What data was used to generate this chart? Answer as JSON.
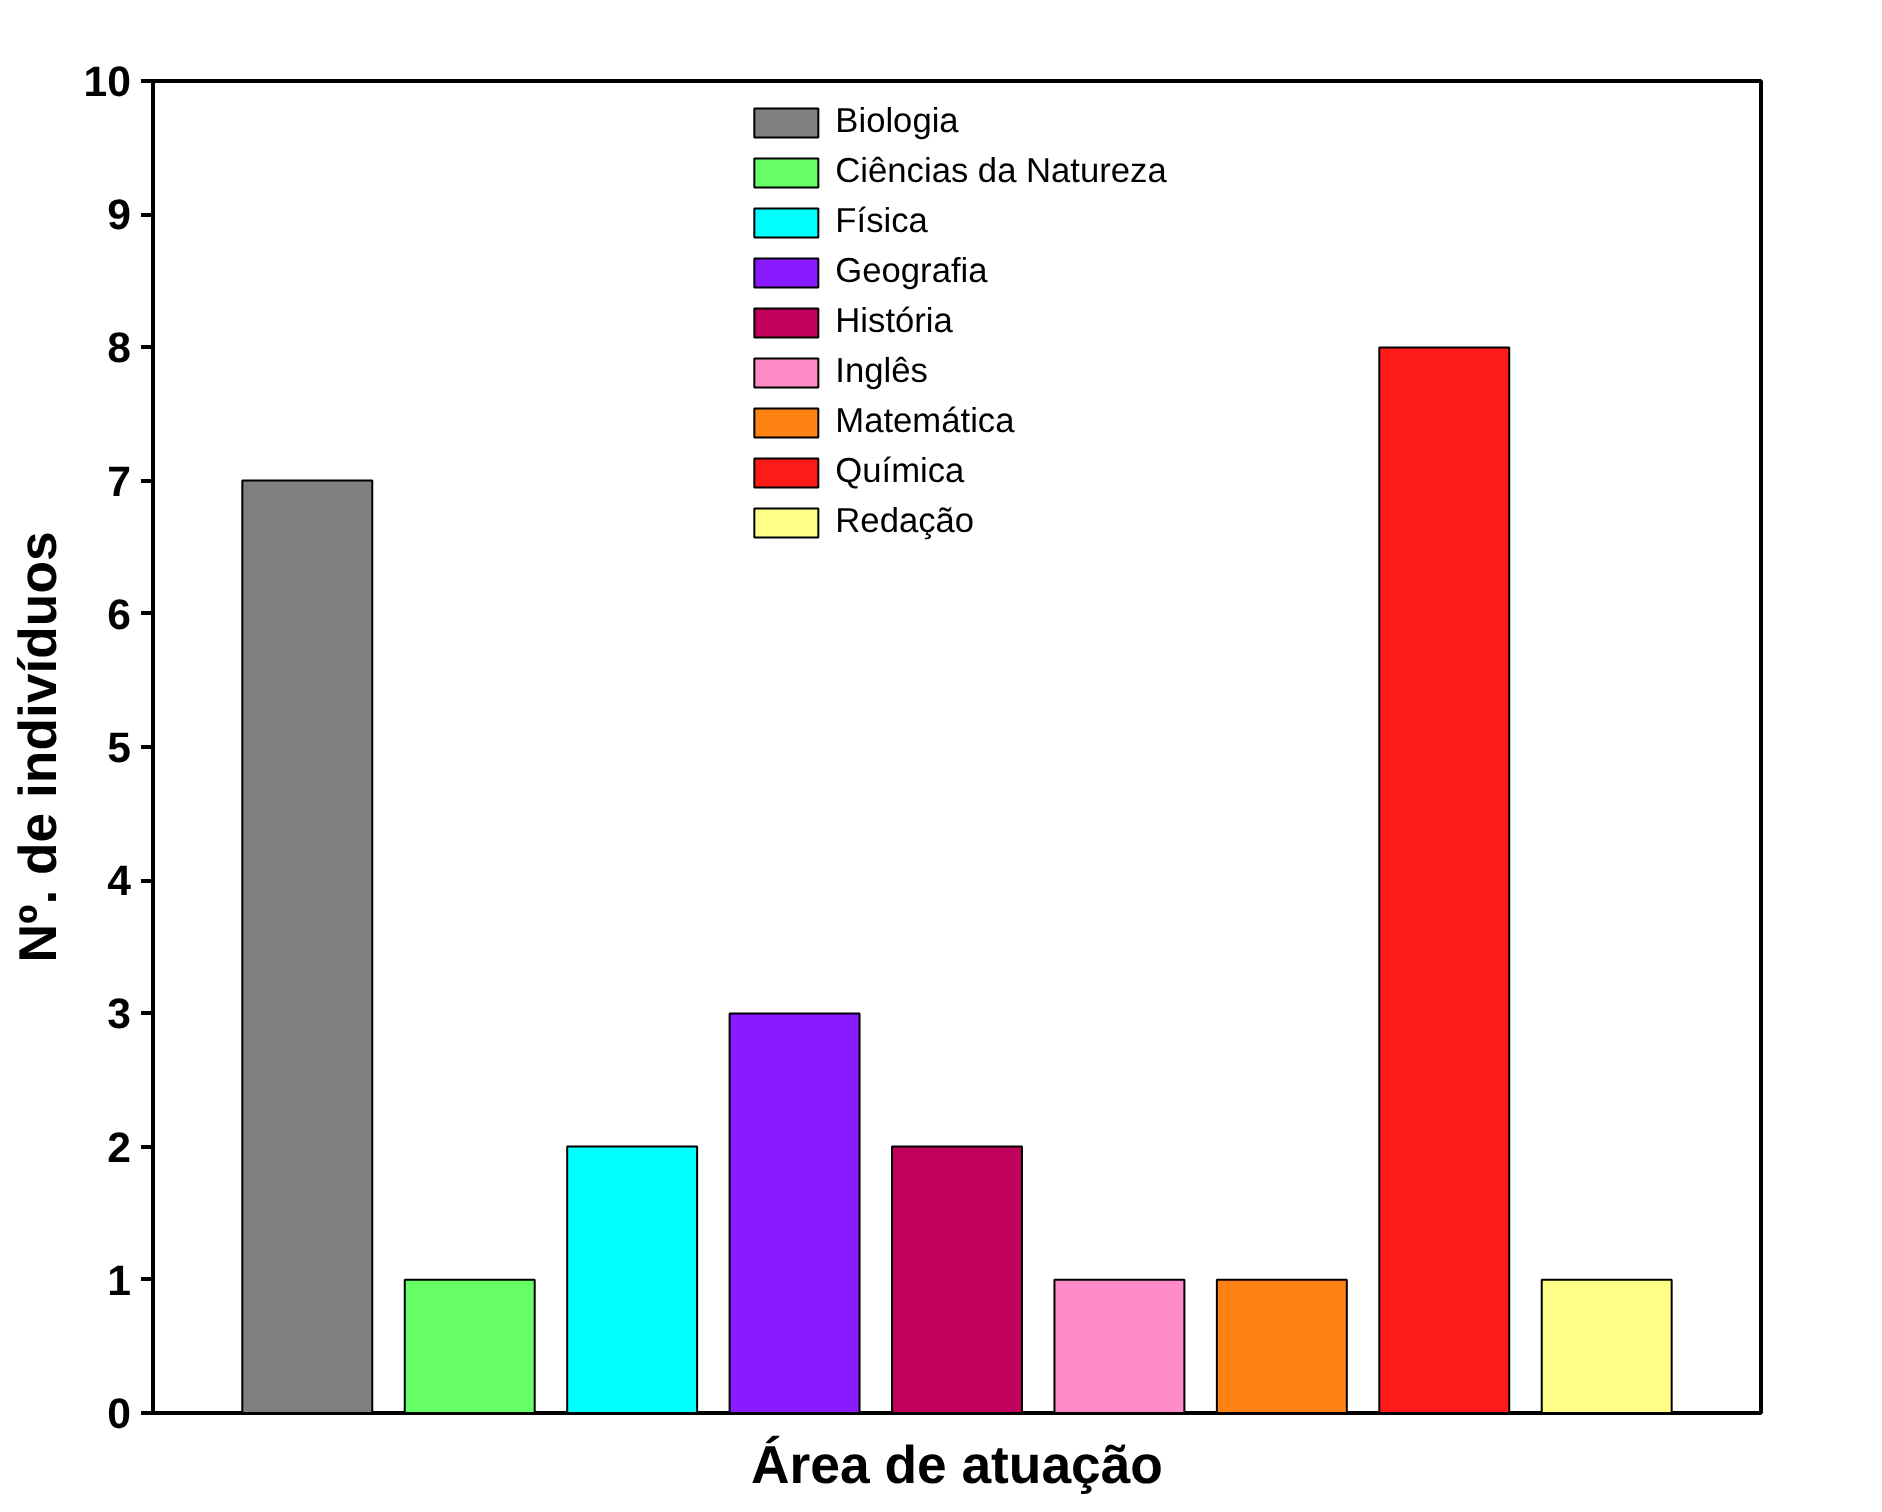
{
  "chart_data": {
    "type": "bar",
    "stacked": true,
    "xlabel": "Área de atuação",
    "ylabel": "Nº. de indivíduos",
    "categories": [
      null,
      null,
      null,
      null,
      null,
      null,
      null,
      null,
      null
    ],
    "series": [
      {
        "name": "Biologia",
        "color": "#7f7f7f",
        "values": [
          7,
          null,
          null,
          null,
          null,
          null,
          null,
          null,
          null
        ]
      },
      {
        "name": "Ciências da Natureza",
        "color": "#66ff66",
        "values": [
          null,
          1,
          null,
          null,
          null,
          null,
          null,
          null,
          null
        ]
      },
      {
        "name": "Física",
        "color": "#00ffff",
        "values": [
          null,
          null,
          2,
          null,
          null,
          null,
          null,
          null,
          null
        ]
      },
      {
        "name": "Geografia",
        "color": "#8a1aff",
        "values": [
          null,
          null,
          null,
          3,
          null,
          null,
          null,
          null,
          null
        ]
      },
      {
        "name": "História",
        "color": "#c0005c",
        "values": [
          null,
          null,
          null,
          null,
          2,
          null,
          null,
          null,
          null
        ]
      },
      {
        "name": "Inglês",
        "color": "#ff8ac8",
        "values": [
          null,
          null,
          null,
          null,
          null,
          1,
          null,
          null,
          null
        ]
      },
      {
        "name": "Matemática",
        "color": "#ff8214",
        "values": [
          null,
          null,
          null,
          null,
          null,
          null,
          1,
          null,
          null
        ]
      },
      {
        "name": "Química",
        "color": "#ff1a1a",
        "values": [
          null,
          null,
          null,
          null,
          null,
          null,
          null,
          8,
          null
        ]
      },
      {
        "name": "Redação",
        "color": "#ffff88",
        "values": [
          null,
          null,
          null,
          null,
          null,
          null,
          null,
          null,
          1
        ]
      }
    ],
    "tick_labels": "y",
    "ylim": [
      0,
      10
    ],
    "yticks": [
      0,
      1,
      2,
      3,
      4,
      5,
      6,
      7,
      8,
      9,
      10
    ],
    "grid": false,
    "legend": "top"
  }
}
